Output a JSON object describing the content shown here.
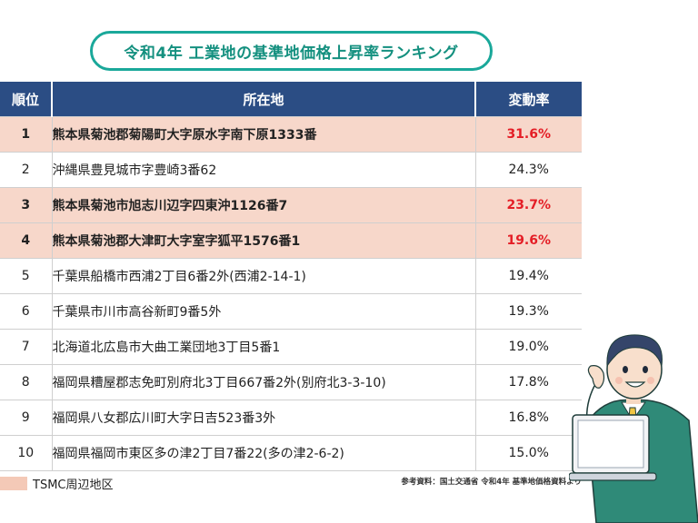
{
  "title": "令和4年 工業地の基準地価格上昇率ランキング",
  "table": {
    "headers": [
      "順位",
      "所在地",
      "変動率"
    ],
    "rows": [
      {
        "rank": "1",
        "location": "熊本県菊池郡菊陽町大字原水字南下原1333番",
        "rate": "31.6%",
        "tsmc": true
      },
      {
        "rank": "2",
        "location": "沖縄県豊見城市字豊崎3番62",
        "rate": "24.3%",
        "tsmc": false
      },
      {
        "rank": "3",
        "location": "熊本県菊池市旭志川辺字四東沖1126番7",
        "rate": "23.7%",
        "tsmc": true
      },
      {
        "rank": "4",
        "location": "熊本県菊池郡大津町大字室字狐平1576番1",
        "rate": "19.6%",
        "tsmc": true
      },
      {
        "rank": "5",
        "location": "千葉県船橋市西浦2丁目6番2外(西浦2-14-1)",
        "rate": "19.4%",
        "tsmc": false
      },
      {
        "rank": "6",
        "location": "千葉県市川市高谷新町9番5外",
        "rate": "19.3%",
        "tsmc": false
      },
      {
        "rank": "7",
        "location": "北海道北広島市大曲工業団地3丁目5番1",
        "rate": "19.0%",
        "tsmc": false
      },
      {
        "rank": "8",
        "location": "福岡県糟屋郡志免町別府北3丁目667番2外(別府北3-3-10)",
        "rate": "17.8%",
        "tsmc": false
      },
      {
        "rank": "9",
        "location": "福岡県八女郡広川町大字日吉523番3外",
        "rate": "16.8%",
        "tsmc": false
      },
      {
        "rank": "10",
        "location": "福岡県福岡市東区多の津2丁目7番22(多の津2-6-2)",
        "rate": "15.0%",
        "tsmc": false
      }
    ]
  },
  "legend": {
    "label": "TSMC周辺地区",
    "color": "#f4c9b7"
  },
  "source": "参考資料：国土交通省 令和4年 基準地価格資料より",
  "colors": {
    "header_bg": "#2b4d84",
    "title_border": "#1aa89a",
    "highlight_row": "#f7d7ca",
    "highlight_text": "#e41e26"
  },
  "illustration": "businessman-with-laptop"
}
